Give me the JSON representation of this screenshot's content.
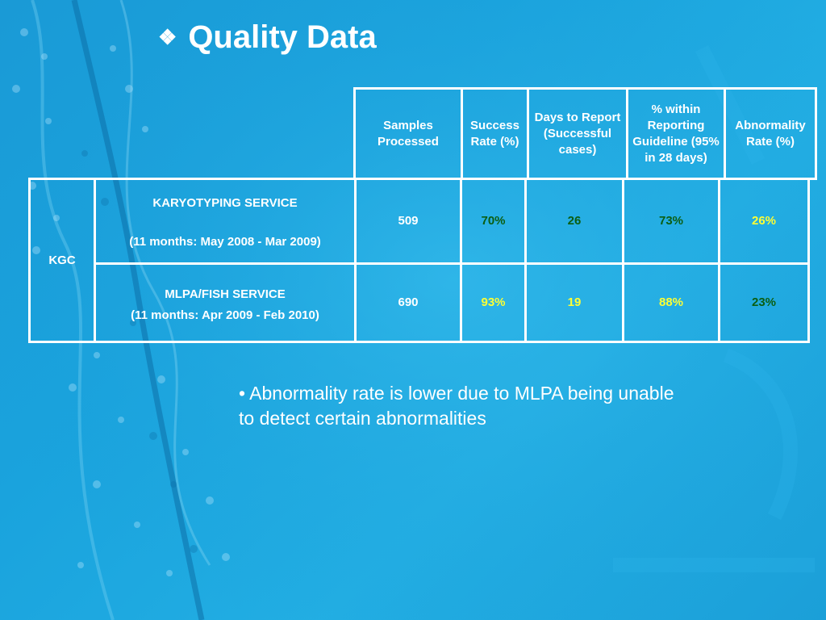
{
  "slide": {
    "title": "Quality Data",
    "title_icon": "❖"
  },
  "table": {
    "columns": [
      "Samples Processed",
      "Success Rate (%)",
      "Days to Report (Successful cases)",
      "% within Reporting Guideline (95% in 28 days)",
      "Abnormality Rate (%)"
    ],
    "group_label": "KGC",
    "rows": [
      {
        "service": "KARYOTYPING SERVICE",
        "period": "(11 months: May 2008 - Mar 2009)",
        "samples_processed": "509",
        "success_rate": "70%",
        "days_to_report": "26",
        "within_guideline": "73%",
        "abnormality_rate": "26%"
      },
      {
        "service": "MLPA/FISH SERVICE",
        "period": "(11 months: Apr 2009 - Feb 2010)",
        "samples_processed": "690",
        "success_rate": "93%",
        "days_to_report": "19",
        "within_guideline": "88%",
        "abnormality_rate": "23%"
      }
    ]
  },
  "note": "• Abnormality rate is lower due to MLPA being unable to detect certain abnormalities",
  "colors": {
    "background": "#1aa3dd",
    "text": "#ffffff",
    "highlight_green": "#0b5e12",
    "highlight_yellow": "#ffff33"
  }
}
